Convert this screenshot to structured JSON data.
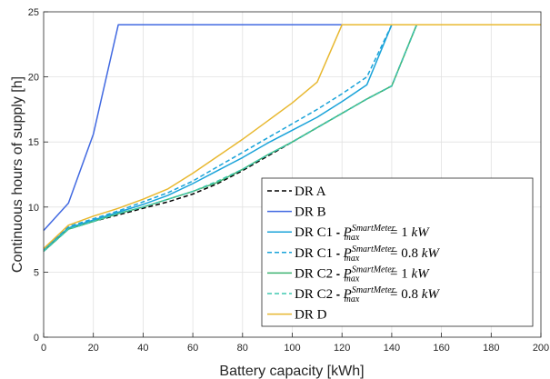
{
  "chart_data": {
    "type": "line",
    "xlabel": "Battery capacity [kWh]",
    "ylabel": "Continuous hours of supply [h]",
    "xlim": [
      0,
      200
    ],
    "ylim": [
      0,
      25
    ],
    "xticks": [
      0,
      20,
      40,
      60,
      80,
      100,
      120,
      140,
      160,
      180,
      200
    ],
    "yticks": [
      0,
      5,
      10,
      15,
      20,
      25
    ],
    "grid": true,
    "legend_position": "bottom-right",
    "series": [
      {
        "name": "DR A",
        "color": "#000000",
        "dash": "dashed",
        "x": [
          0,
          10,
          20,
          30,
          40,
          50,
          60,
          70,
          80,
          90,
          100,
          110,
          120,
          130,
          140,
          150,
          160,
          200
        ],
        "y": [
          6.6,
          8.3,
          8.9,
          9.4,
          9.9,
          10.4,
          11.0,
          11.8,
          12.8,
          13.9,
          15.0,
          16.1,
          17.2,
          18.3,
          19.3,
          24,
          24,
          24
        ]
      },
      {
        "name": "DR B",
        "color": "#4169e1",
        "dash": "solid",
        "x": [
          0,
          10,
          20,
          30,
          200
        ],
        "y": [
          8.2,
          10.3,
          15.6,
          24,
          24
        ]
      },
      {
        "name": "DR C1 - P_max^SmartMeter = 1 kW",
        "color": "#1aa3d9",
        "dash": "solid",
        "x": [
          0,
          10,
          20,
          30,
          40,
          50,
          60,
          70,
          80,
          90,
          100,
          110,
          120,
          130,
          140,
          200
        ],
        "y": [
          6.7,
          8.4,
          9.0,
          9.6,
          10.2,
          10.9,
          11.8,
          12.8,
          13.8,
          14.9,
          15.9,
          16.9,
          18.1,
          19.4,
          24,
          24
        ]
      },
      {
        "name": "DR C1 - P_max^SmartMeter = 0.8 kW",
        "color": "#1aa3d9",
        "dash": "dashed",
        "x": [
          0,
          10,
          20,
          30,
          40,
          50,
          60,
          70,
          80,
          90,
          100,
          110,
          120,
          130,
          140,
          200
        ],
        "y": [
          6.8,
          8.5,
          9.1,
          9.7,
          10.4,
          11.1,
          12.0,
          13.1,
          14.2,
          15.3,
          16.4,
          17.5,
          18.7,
          20.0,
          24,
          24
        ]
      },
      {
        "name": "DR C2 - P_max^SmartMeter = 1 kW",
        "color": "#3cb371",
        "dash": "solid",
        "x": [
          0,
          10,
          20,
          30,
          40,
          50,
          60,
          70,
          80,
          90,
          100,
          110,
          120,
          130,
          140,
          150,
          200
        ],
        "y": [
          6.6,
          8.3,
          8.9,
          9.5,
          10.0,
          10.6,
          11.2,
          11.9,
          12.9,
          14.0,
          15.0,
          16.1,
          17.2,
          18.3,
          19.3,
          24,
          24
        ]
      },
      {
        "name": "DR C2 - P_max^SmartMeter = 0.8 kW",
        "color": "#40c8b0",
        "dash": "dashed",
        "x": [
          0,
          10,
          20,
          30,
          40,
          50,
          60,
          70,
          80,
          90,
          100,
          110,
          120,
          130,
          140,
          150,
          200
        ],
        "y": [
          6.6,
          8.3,
          8.9,
          9.5,
          10.0,
          10.6,
          11.2,
          12.0,
          12.9,
          14.0,
          15.0,
          16.1,
          17.2,
          18.3,
          19.3,
          24,
          24
        ]
      },
      {
        "name": "DR D",
        "color": "#e8b830",
        "dash": "solid",
        "x": [
          0,
          10,
          20,
          30,
          40,
          50,
          60,
          70,
          80,
          90,
          100,
          110,
          120,
          200
        ],
        "y": [
          6.8,
          8.6,
          9.3,
          9.9,
          10.6,
          11.4,
          12.6,
          13.9,
          15.2,
          16.6,
          18.0,
          19.6,
          24,
          24
        ]
      }
    ]
  },
  "legend": {
    "items": [
      {
        "dr": "DR A"
      },
      {
        "dr": "DR B"
      },
      {
        "dr": "DR C1",
        "sep": "-",
        "p": "P",
        "sup": "SmartMeter",
        "sub": "max",
        "eq": "= 1",
        "unit": "kW"
      },
      {
        "dr": "DR C1",
        "sep": "-",
        "p": "P",
        "sup": "SmartMeter",
        "sub": "max",
        "eq": "= 0.8",
        "unit": "kW"
      },
      {
        "dr": "DR C2",
        "sep": "-",
        "p": "P",
        "sup": "SmartMeter",
        "sub": "max",
        "eq": "= 1",
        "unit": "kW"
      },
      {
        "dr": "DR C2",
        "sep": "-",
        "p": "P",
        "sup": "SmartMeter",
        "sub": "max",
        "eq": "= 0.8",
        "unit": "kW"
      },
      {
        "dr": "DR D"
      }
    ]
  }
}
